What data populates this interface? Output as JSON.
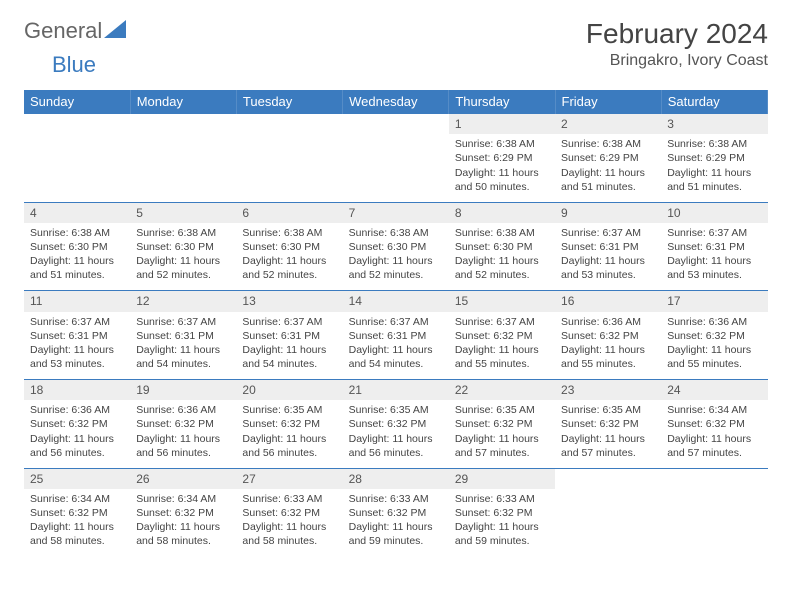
{
  "logo": {
    "text_general": "General",
    "text_blue": "Blue"
  },
  "title": "February 2024",
  "location": "Bringakro, Ivory Coast",
  "colors": {
    "header_bg": "#3b7bbf",
    "header_text": "#ffffff",
    "daynum_bg": "#eeeeee",
    "border": "#3b7bbf",
    "body_text": "#444444",
    "page_bg": "#ffffff"
  },
  "typography": {
    "title_fontsize": 28,
    "location_fontsize": 16,
    "weekday_fontsize": 13,
    "daynum_fontsize": 12,
    "cell_fontsize": 10.5
  },
  "weekdays": [
    "Sunday",
    "Monday",
    "Tuesday",
    "Wednesday",
    "Thursday",
    "Friday",
    "Saturday"
  ],
  "weeks": [
    [
      null,
      null,
      null,
      null,
      {
        "d": "1",
        "sr": "6:38 AM",
        "ss": "6:29 PM",
        "dl": "11 hours and 50 minutes."
      },
      {
        "d": "2",
        "sr": "6:38 AM",
        "ss": "6:29 PM",
        "dl": "11 hours and 51 minutes."
      },
      {
        "d": "3",
        "sr": "6:38 AM",
        "ss": "6:29 PM",
        "dl": "11 hours and 51 minutes."
      }
    ],
    [
      {
        "d": "4",
        "sr": "6:38 AM",
        "ss": "6:30 PM",
        "dl": "11 hours and 51 minutes."
      },
      {
        "d": "5",
        "sr": "6:38 AM",
        "ss": "6:30 PM",
        "dl": "11 hours and 52 minutes."
      },
      {
        "d": "6",
        "sr": "6:38 AM",
        "ss": "6:30 PM",
        "dl": "11 hours and 52 minutes."
      },
      {
        "d": "7",
        "sr": "6:38 AM",
        "ss": "6:30 PM",
        "dl": "11 hours and 52 minutes."
      },
      {
        "d": "8",
        "sr": "6:38 AM",
        "ss": "6:30 PM",
        "dl": "11 hours and 52 minutes."
      },
      {
        "d": "9",
        "sr": "6:37 AM",
        "ss": "6:31 PM",
        "dl": "11 hours and 53 minutes."
      },
      {
        "d": "10",
        "sr": "6:37 AM",
        "ss": "6:31 PM",
        "dl": "11 hours and 53 minutes."
      }
    ],
    [
      {
        "d": "11",
        "sr": "6:37 AM",
        "ss": "6:31 PM",
        "dl": "11 hours and 53 minutes."
      },
      {
        "d": "12",
        "sr": "6:37 AM",
        "ss": "6:31 PM",
        "dl": "11 hours and 54 minutes."
      },
      {
        "d": "13",
        "sr": "6:37 AM",
        "ss": "6:31 PM",
        "dl": "11 hours and 54 minutes."
      },
      {
        "d": "14",
        "sr": "6:37 AM",
        "ss": "6:31 PM",
        "dl": "11 hours and 54 minutes."
      },
      {
        "d": "15",
        "sr": "6:37 AM",
        "ss": "6:32 PM",
        "dl": "11 hours and 55 minutes."
      },
      {
        "d": "16",
        "sr": "6:36 AM",
        "ss": "6:32 PM",
        "dl": "11 hours and 55 minutes."
      },
      {
        "d": "17",
        "sr": "6:36 AM",
        "ss": "6:32 PM",
        "dl": "11 hours and 55 minutes."
      }
    ],
    [
      {
        "d": "18",
        "sr": "6:36 AM",
        "ss": "6:32 PM",
        "dl": "11 hours and 56 minutes."
      },
      {
        "d": "19",
        "sr": "6:36 AM",
        "ss": "6:32 PM",
        "dl": "11 hours and 56 minutes."
      },
      {
        "d": "20",
        "sr": "6:35 AM",
        "ss": "6:32 PM",
        "dl": "11 hours and 56 minutes."
      },
      {
        "d": "21",
        "sr": "6:35 AM",
        "ss": "6:32 PM",
        "dl": "11 hours and 56 minutes."
      },
      {
        "d": "22",
        "sr": "6:35 AM",
        "ss": "6:32 PM",
        "dl": "11 hours and 57 minutes."
      },
      {
        "d": "23",
        "sr": "6:35 AM",
        "ss": "6:32 PM",
        "dl": "11 hours and 57 minutes."
      },
      {
        "d": "24",
        "sr": "6:34 AM",
        "ss": "6:32 PM",
        "dl": "11 hours and 57 minutes."
      }
    ],
    [
      {
        "d": "25",
        "sr": "6:34 AM",
        "ss": "6:32 PM",
        "dl": "11 hours and 58 minutes."
      },
      {
        "d": "26",
        "sr": "6:34 AM",
        "ss": "6:32 PM",
        "dl": "11 hours and 58 minutes."
      },
      {
        "d": "27",
        "sr": "6:33 AM",
        "ss": "6:32 PM",
        "dl": "11 hours and 58 minutes."
      },
      {
        "d": "28",
        "sr": "6:33 AM",
        "ss": "6:32 PM",
        "dl": "11 hours and 59 minutes."
      },
      {
        "d": "29",
        "sr": "6:33 AM",
        "ss": "6:32 PM",
        "dl": "11 hours and 59 minutes."
      },
      null,
      null
    ]
  ],
  "labels": {
    "sunrise": "Sunrise:",
    "sunset": "Sunset:",
    "daylight": "Daylight:"
  }
}
